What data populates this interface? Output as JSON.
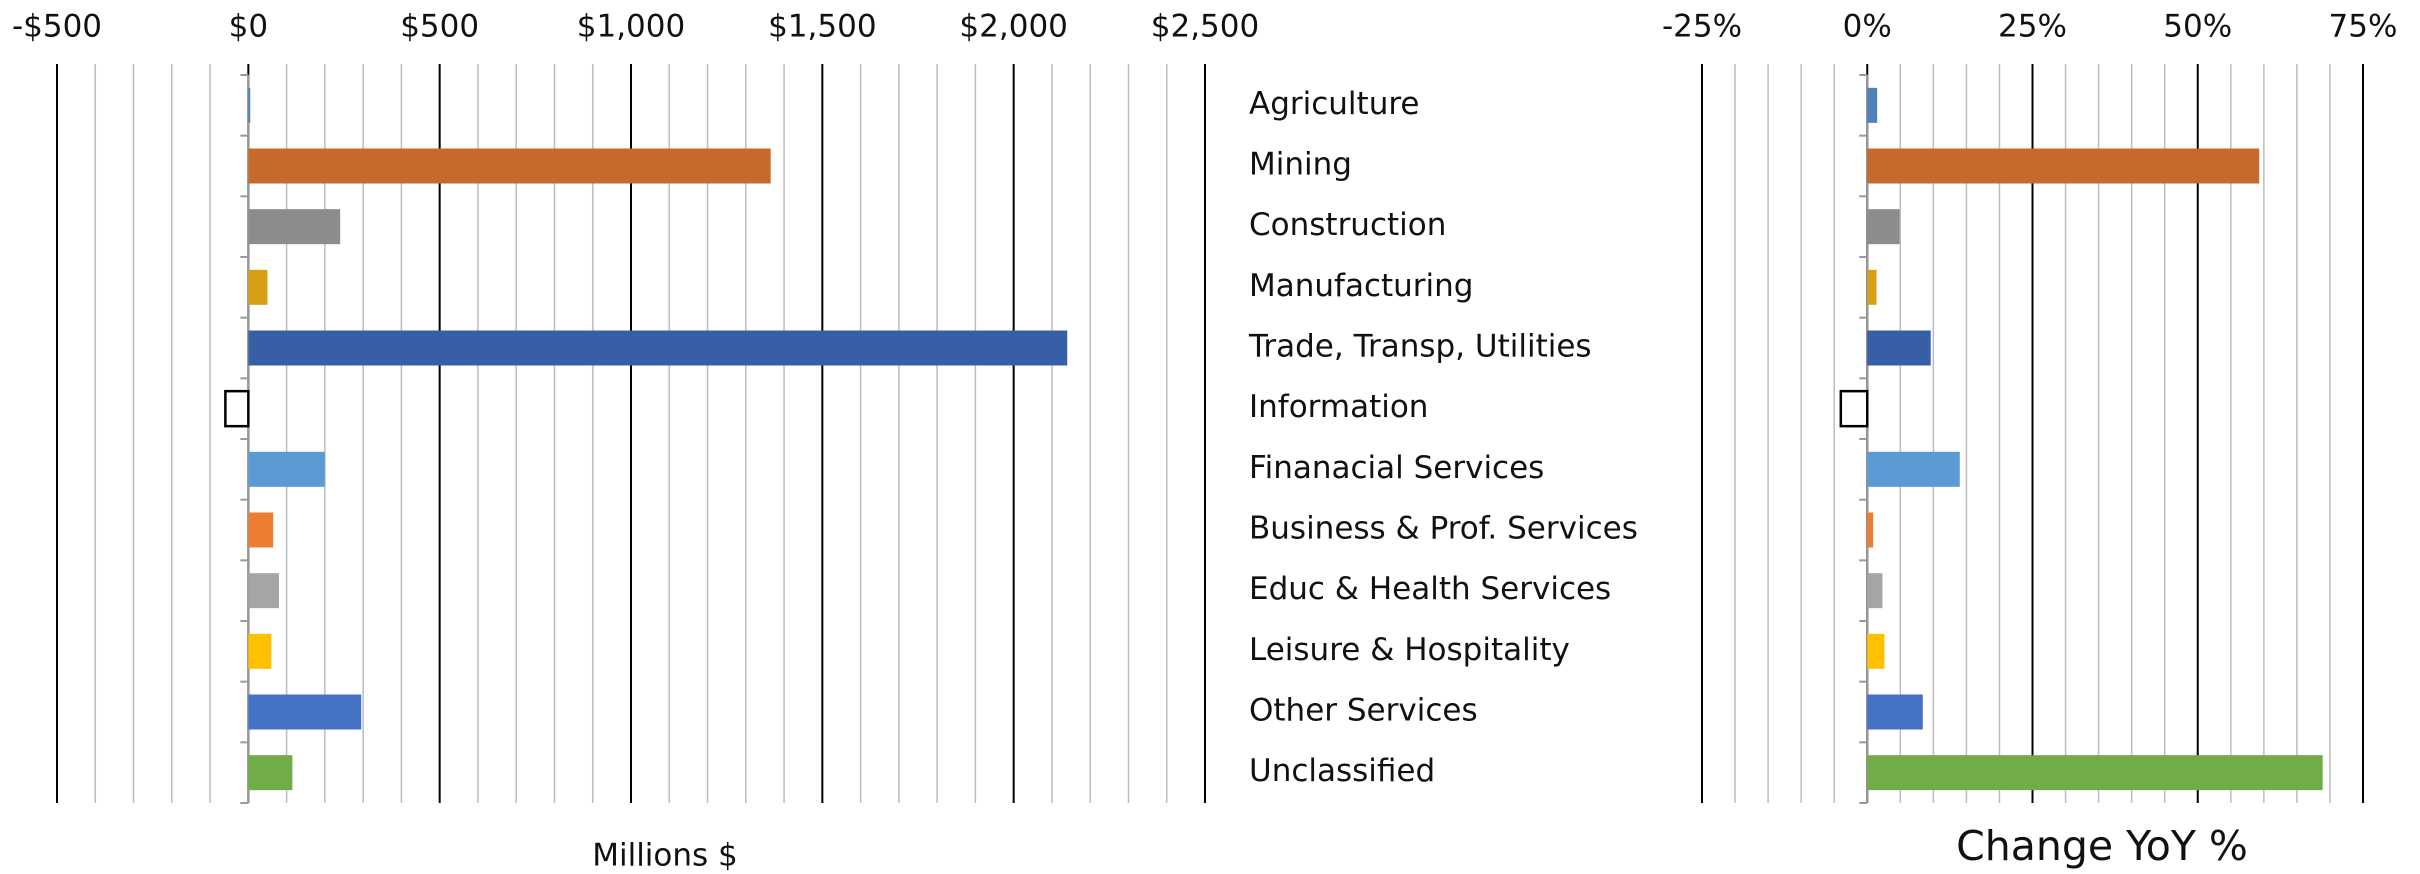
{
  "chart_data": [
    {
      "type": "bar",
      "orientation": "horizontal",
      "xlabel": "Millions $",
      "categories": [
        "Agriculture",
        "Mining",
        "Construction",
        "Manufacturing",
        "Trade, Transp, Utilities",
        "Information",
        "Finanacial Services",
        "Business & Prof. Services",
        "Educ & Health Services",
        "Leisure & Hospitality",
        "Other Services",
        "Unclassified"
      ],
      "values": [
        5,
        1365,
        240,
        50,
        2140,
        -60,
        200,
        65,
        80,
        60,
        295,
        115
      ],
      "colors": [
        "#4f81bd",
        "#c8692c",
        "#8c8c8c",
        "#d6a016",
        "#365fa6",
        "#ffffff",
        "#5b9bd5",
        "#ed7d31",
        "#a5a5a5",
        "#ffc000",
        "#4472c4",
        "#70ad47"
      ],
      "xlim": [
        -500,
        2500
      ],
      "xticks": [
        {
          "value": -500,
          "label": "-$500"
        },
        {
          "value": 0,
          "label": "$0"
        },
        {
          "value": 500,
          "label": "$500"
        },
        {
          "value": 1000,
          "label": "$1,000"
        },
        {
          "value": 1500,
          "label": "$1,500"
        },
        {
          "value": 2000,
          "label": "$2,000"
        },
        {
          "value": 2500,
          "label": "$2,500"
        }
      ],
      "minor_grid_step": 100,
      "grid": true
    },
    {
      "type": "bar",
      "orientation": "horizontal",
      "xlabel": "Change YoY %",
      "values": [
        1.5,
        59.3,
        4.9,
        1.4,
        9.6,
        -4.0,
        14.0,
        0.9,
        2.3,
        2.6,
        8.4,
        68.9
      ],
      "colors": [
        "#4f81bd",
        "#c8692c",
        "#8c8c8c",
        "#d6a016",
        "#365fa6",
        "#ffffff",
        "#5b9bd5",
        "#ed7d31",
        "#a5a5a5",
        "#ffc000",
        "#4472c4",
        "#70ad47"
      ],
      "xlim": [
        -25,
        75
      ],
      "xticks": [
        {
          "value": -25,
          "label": "-25%"
        },
        {
          "value": 0,
          "label": "0%"
        },
        {
          "value": 25,
          "label": "25%"
        },
        {
          "value": 50,
          "label": "50%"
        },
        {
          "value": 75,
          "label": "75%"
        }
      ],
      "minor_grid_step": 5,
      "grid": true
    }
  ]
}
